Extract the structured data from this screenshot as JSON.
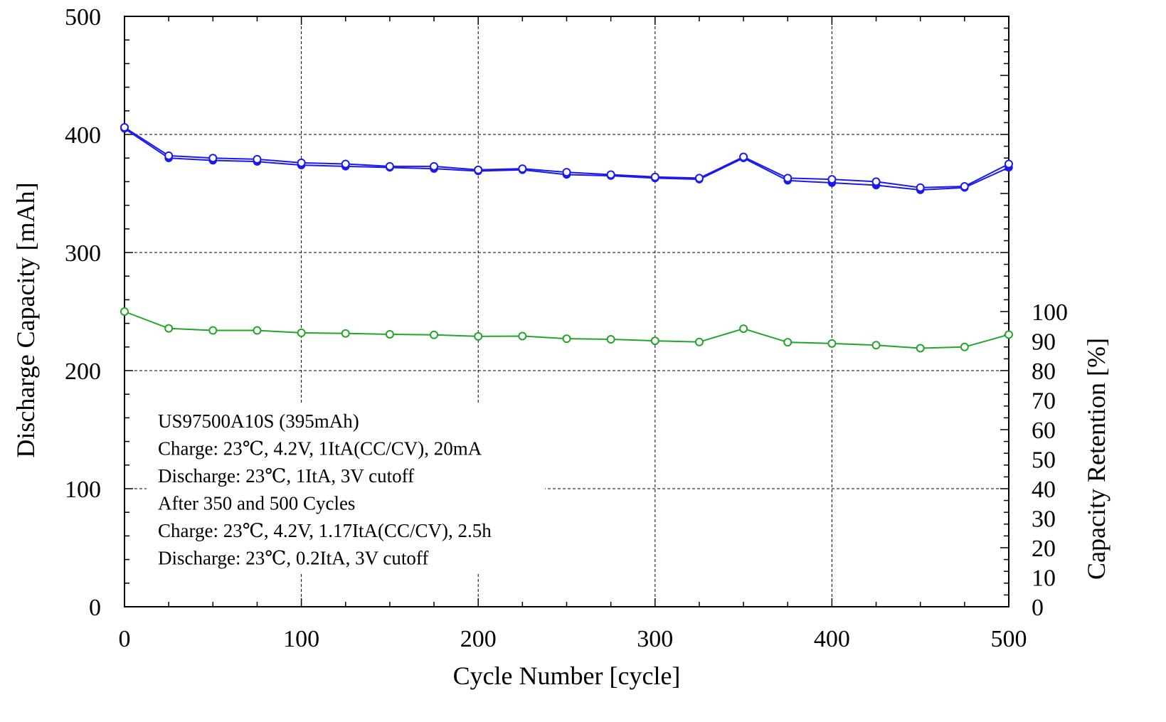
{
  "chart_data": {
    "type": "line",
    "xlabel": "Cycle Number  [cycle]",
    "ylabel": "Discharge Capacity  [mAh]",
    "y2label": "Capacity Retention  [%]",
    "xlim": [
      0,
      500
    ],
    "ylim": [
      0,
      500
    ],
    "y2lim": [
      0,
      100
    ],
    "x_ticks": [
      0,
      100,
      200,
      300,
      400,
      500
    ],
    "y_ticks": [
      0,
      100,
      200,
      300,
      400,
      500
    ],
    "y2_ticks": [
      0,
      10,
      20,
      30,
      40,
      50,
      60,
      70,
      80,
      90,
      100
    ],
    "grid": true,
    "x": [
      0,
      25,
      50,
      75,
      100,
      125,
      150,
      175,
      200,
      225,
      250,
      275,
      300,
      325,
      350,
      375,
      400,
      425,
      450,
      475,
      500
    ],
    "series": [
      {
        "axis": "left",
        "color": "#1a1aee",
        "marker": "filled-circle",
        "values": [
          405,
          380,
          378,
          377,
          374,
          373,
          372,
          371,
          369,
          370,
          366,
          365,
          363,
          362,
          380,
          361,
          359,
          357,
          353,
          355,
          372
        ]
      },
      {
        "axis": "left",
        "color": "#1a1aee",
        "marker": "open-circle",
        "values": [
          406,
          382,
          380,
          379,
          376,
          375,
          373,
          373,
          370,
          371,
          368,
          366,
          364,
          363,
          381,
          363,
          362,
          360,
          355,
          356,
          375
        ]
      },
      {
        "axis": "right",
        "color": "#22a52a",
        "marker": "open-circle",
        "values": [
          100,
          94.3,
          93.6,
          93.6,
          92.8,
          92.6,
          92.3,
          92.1,
          91.6,
          91.7,
          90.8,
          90.6,
          90.1,
          89.7,
          94.2,
          89.6,
          89.2,
          88.6,
          87.6,
          88.0,
          92.2
        ]
      }
    ],
    "annotation": [
      "US97500A10S  (395mAh)",
      "Charge: 23℃, 4.2V, 1ItA(CC/CV), 20mA",
      "Discharge: 23℃, 1ItA, 3V cutoff",
      "After 350 and 500 Cycles",
      "Charge: 23℃, 4.2V, 1.17ItA(CC/CV), 2.5h",
      "Discharge: 23℃, 0.2ItA, 3V cutoff"
    ]
  }
}
